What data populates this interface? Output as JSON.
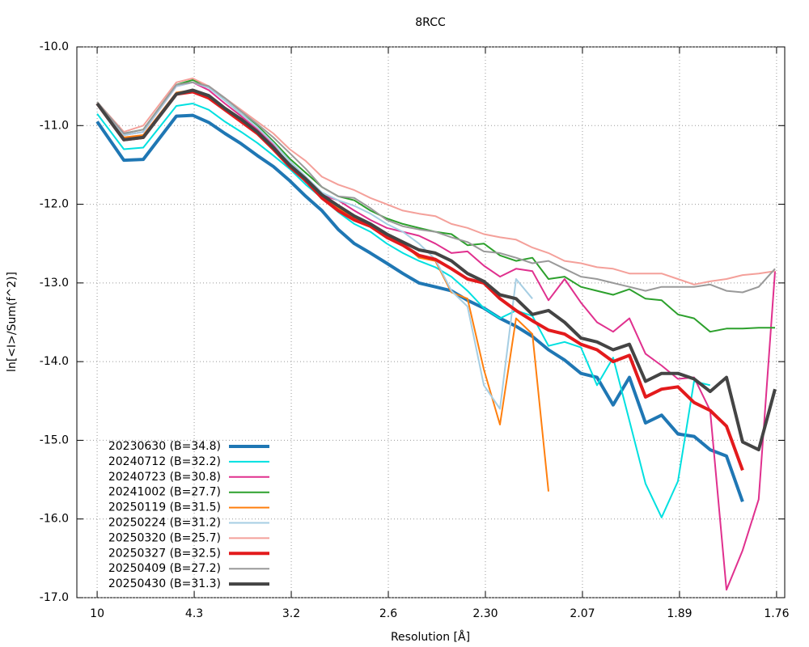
{
  "chart_data": {
    "type": "line",
    "title": "8RCC",
    "x_label": "Resolution [Å]",
    "y_label": "ln[<I>/Sum(f^2)]",
    "xlim": [
      0.0008,
      0.3217
    ],
    "ylim": [
      -17,
      -10
    ],
    "xticks": [
      {
        "value": 0.01,
        "label": "10"
      },
      {
        "value": 0.054,
        "label": "4.3"
      },
      {
        "value": 0.098,
        "label": "3.2"
      },
      {
        "value": 0.142,
        "label": "2.6"
      },
      {
        "value": 0.186,
        "label": "2.30"
      },
      {
        "value": 0.23,
        "label": "2.07"
      },
      {
        "value": 0.274,
        "label": "1.89"
      },
      {
        "value": 0.318,
        "label": "1.76"
      }
    ],
    "yticks": [
      {
        "value": -17,
        "label": "-17.0"
      },
      {
        "value": -16,
        "label": "-16.0"
      },
      {
        "value": -15,
        "label": "-15.0"
      },
      {
        "value": -14,
        "label": "-14.0"
      },
      {
        "value": -13,
        "label": "-13.0"
      },
      {
        "value": -12,
        "label": "-12.0"
      },
      {
        "value": -11,
        "label": "-11.0"
      },
      {
        "value": -10,
        "label": "-10.0"
      }
    ],
    "grid": true,
    "legend": "lower left",
    "x": [
      0.01,
      0.0221,
      0.0309,
      0.0459,
      0.0533,
      0.0606,
      0.0679,
      0.0753,
      0.0826,
      0.0899,
      0.0973,
      0.1046,
      0.1119,
      0.1193,
      0.1266,
      0.1339,
      0.1413,
      0.1486,
      0.1559,
      0.1633,
      0.1706,
      0.1779,
      0.1853,
      0.1926,
      0.1999,
      0.2073,
      0.2146,
      0.2219,
      0.2293,
      0.2366,
      0.2439,
      0.2513,
      0.2586,
      0.2659,
      0.2733,
      0.2806,
      0.2879,
      0.2953,
      0.3026,
      0.3099,
      0.3173
    ],
    "series": [
      {
        "name": "20230630 (B=34.8)",
        "color": "#1f77b4",
        "line_width": 4,
        "values": [
          -10.95,
          -11.44,
          -11.43,
          -10.88,
          -10.87,
          -10.96,
          -11.1,
          -11.23,
          -11.38,
          -11.52,
          -11.7,
          -11.9,
          -12.08,
          -12.32,
          -12.5,
          -12.62,
          -12.75,
          -12.88,
          -13.0,
          -13.05,
          -13.1,
          -13.22,
          -13.32,
          -13.45,
          -13.55,
          -13.68,
          -13.85,
          -13.98,
          -14.15,
          -14.2,
          -14.55,
          -14.2,
          -14.78,
          -14.68,
          -14.92,
          -14.95,
          -15.12,
          -15.2,
          -15.78,
          null,
          null
        ]
      },
      {
        "name": "20240712 (B=32.2)",
        "color": "#00e0e0",
        "line_width": 2,
        "values": [
          -10.85,
          -11.3,
          -11.28,
          -10.75,
          -10.72,
          -10.8,
          -10.95,
          -11.08,
          -11.22,
          -11.38,
          -11.55,
          -11.75,
          -11.92,
          -12.1,
          -12.25,
          -12.35,
          -12.5,
          -12.62,
          -12.72,
          -12.8,
          -12.92,
          -13.1,
          -13.32,
          -13.45,
          -13.35,
          -13.42,
          -13.8,
          -13.75,
          -13.82,
          -14.3,
          -13.95,
          -14.75,
          -15.55,
          -15.98,
          -15.52,
          -14.25,
          -14.3,
          null,
          null,
          null,
          null
        ]
      },
      {
        "name": "20240723 (B=30.8)",
        "color": "#e0308e",
        "line_width": 2,
        "values": [
          -10.72,
          -11.12,
          -11.08,
          -10.5,
          -10.45,
          -10.55,
          -10.72,
          -10.88,
          -11.05,
          -11.25,
          -11.5,
          -11.72,
          -11.88,
          -11.95,
          -12.08,
          -12.2,
          -12.3,
          -12.35,
          -12.4,
          -12.5,
          -12.62,
          -12.6,
          -12.78,
          -12.92,
          -12.82,
          -12.85,
          -13.22,
          -12.95,
          -13.25,
          -13.5,
          -13.62,
          -13.45,
          -13.9,
          -14.05,
          -14.22,
          -14.2,
          -14.62,
          -16.9,
          -16.4,
          -15.75,
          -12.85
        ]
      },
      {
        "name": "20241002 (B=27.7)",
        "color": "#2ca02c",
        "line_width": 2,
        "values": [
          -10.7,
          -11.1,
          -11.05,
          -10.48,
          -10.42,
          -10.5,
          -10.68,
          -10.85,
          -11.0,
          -11.2,
          -11.42,
          -11.6,
          -11.78,
          -11.9,
          -11.95,
          -12.08,
          -12.18,
          -12.25,
          -12.3,
          -12.35,
          -12.38,
          -12.52,
          -12.5,
          -12.65,
          -12.72,
          -12.68,
          -12.95,
          -12.92,
          -13.05,
          -13.1,
          -13.15,
          -13.08,
          -13.2,
          -13.22,
          -13.4,
          -13.45,
          -13.62,
          -13.58,
          -13.58,
          -13.57,
          -13.57
        ]
      },
      {
        "name": "20250119 (B=31.5)",
        "color": "#ff7f0e",
        "line_width": 2,
        "values": [
          -10.72,
          -11.15,
          -11.12,
          -10.58,
          -10.55,
          -10.62,
          -10.78,
          -10.92,
          -11.08,
          -11.28,
          -11.5,
          -11.68,
          -11.9,
          -12.05,
          -12.18,
          -12.28,
          -12.4,
          -12.5,
          -12.68,
          -12.72,
          -13.12,
          -13.2,
          -14.1,
          -14.8,
          -13.45,
          -13.65,
          -15.65,
          null,
          null,
          null,
          null,
          null,
          null,
          null,
          null,
          null,
          null,
          null,
          null,
          null,
          null
        ]
      },
      {
        "name": "20250224 (B=31.2)",
        "color": "#a6cee3",
        "line_width": 2,
        "values": [
          -10.7,
          -11.12,
          -11.08,
          -10.5,
          -10.45,
          -10.52,
          -10.68,
          -10.85,
          -11.02,
          -11.22,
          -11.45,
          -11.65,
          -11.85,
          -11.95,
          -12.02,
          -12.12,
          -12.25,
          -12.35,
          -12.5,
          -12.7,
          -13.1,
          -13.3,
          -14.3,
          -14.6,
          -12.95,
          -13.2,
          null,
          null,
          null,
          null,
          null,
          null,
          null,
          null,
          null,
          null,
          null,
          null,
          null,
          null,
          null
        ]
      },
      {
        "name": "20250320 (B=25.7)",
        "color": "#f4a09a",
        "line_width": 2,
        "values": [
          -10.7,
          -11.08,
          -11.0,
          -10.45,
          -10.4,
          -10.5,
          -10.65,
          -10.8,
          -10.95,
          -11.1,
          -11.3,
          -11.45,
          -11.65,
          -11.75,
          -11.82,
          -11.92,
          -12.0,
          -12.08,
          -12.12,
          -12.15,
          -12.25,
          -12.3,
          -12.38,
          -12.42,
          -12.45,
          -12.55,
          -12.62,
          -12.72,
          -12.75,
          -12.8,
          -12.82,
          -12.88,
          -12.88,
          -12.88,
          -12.95,
          -13.02,
          -12.98,
          -12.95,
          -12.9,
          -12.88,
          -12.85
        ]
      },
      {
        "name": "20250327 (B=32.5)",
        "color": "#e31a1c",
        "line_width": 4,
        "values": [
          -10.72,
          -11.18,
          -11.15,
          -10.6,
          -10.57,
          -10.65,
          -10.8,
          -10.95,
          -11.1,
          -11.3,
          -11.52,
          -11.7,
          -11.92,
          -12.08,
          -12.2,
          -12.28,
          -12.42,
          -12.52,
          -12.65,
          -12.7,
          -12.82,
          -12.95,
          -13.0,
          -13.2,
          -13.35,
          -13.48,
          -13.6,
          -13.65,
          -13.78,
          -13.85,
          -14.0,
          -13.92,
          -14.45,
          -14.35,
          -14.32,
          -14.52,
          -14.62,
          -14.82,
          -15.38,
          null,
          null
        ]
      },
      {
        "name": "20250409 (B=27.2)",
        "color": "#999999",
        "line_width": 2,
        "values": [
          -10.7,
          -11.1,
          -11.05,
          -10.48,
          -10.45,
          -10.5,
          -10.65,
          -10.82,
          -10.98,
          -11.15,
          -11.35,
          -11.55,
          -11.78,
          -11.9,
          -11.92,
          -12.05,
          -12.2,
          -12.28,
          -12.32,
          -12.35,
          -12.42,
          -12.48,
          -12.6,
          -12.62,
          -12.68,
          -12.75,
          -12.72,
          -12.82,
          -12.92,
          -12.95,
          -13.0,
          -13.05,
          -13.1,
          -13.05,
          -13.05,
          -13.05,
          -13.02,
          -13.1,
          -13.12,
          -13.05,
          -12.82
        ]
      },
      {
        "name": "20250430 (B=31.3)",
        "color": "#444444",
        "line_width": 4,
        "values": [
          -10.72,
          -11.18,
          -11.15,
          -10.6,
          -10.55,
          -10.62,
          -10.78,
          -10.92,
          -11.08,
          -11.28,
          -11.5,
          -11.68,
          -11.88,
          -12.02,
          -12.15,
          -12.25,
          -12.38,
          -12.48,
          -12.58,
          -12.62,
          -12.72,
          -12.88,
          -12.98,
          -13.15,
          -13.2,
          -13.4,
          -13.35,
          -13.5,
          -13.7,
          -13.75,
          -13.85,
          -13.78,
          -14.25,
          -14.15,
          -14.15,
          -14.22,
          -14.38,
          -14.2,
          -15.02,
          -15.12,
          -14.35
        ]
      }
    ]
  }
}
